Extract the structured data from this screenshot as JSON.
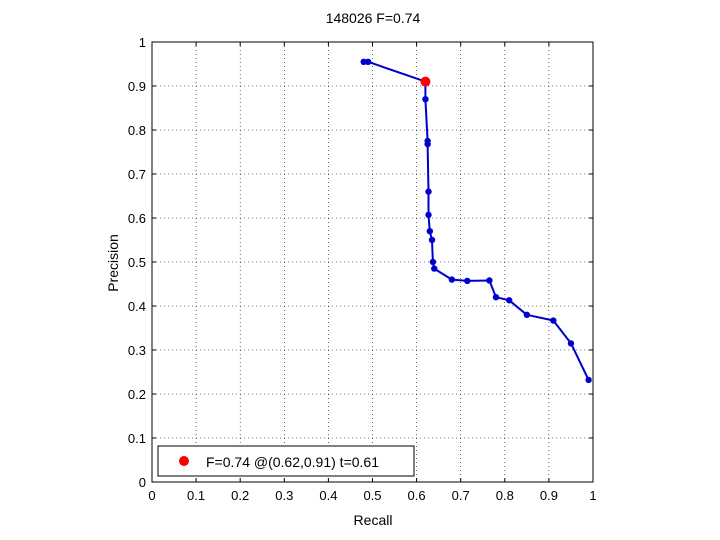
{
  "chart_data": {
    "type": "line",
    "title": "148026 F=0.74",
    "xlabel": "Recall",
    "ylabel": "Precision",
    "xlim": [
      0,
      1
    ],
    "ylim": [
      0,
      1
    ],
    "grid": true,
    "x_ticks": [
      "0",
      "0.1",
      "0.2",
      "0.3",
      "0.4",
      "0.5",
      "0.6",
      "0.7",
      "0.8",
      "0.9",
      "1"
    ],
    "y_ticks": [
      "0",
      "0.1",
      "0.2",
      "0.3",
      "0.4",
      "0.5",
      "0.6",
      "0.7",
      "0.8",
      "0.9",
      "1"
    ],
    "series": [
      {
        "color": "#0000cc",
        "x": [
          0.48,
          0.49,
          0.62,
          0.62,
          0.625,
          0.625,
          0.627,
          0.627,
          0.63,
          0.635,
          0.637,
          0.64,
          0.68,
          0.715,
          0.765,
          0.78,
          0.81,
          0.85,
          0.91,
          0.95,
          0.99
        ],
        "y": [
          0.955,
          0.955,
          0.91,
          0.87,
          0.775,
          0.768,
          0.66,
          0.607,
          0.57,
          0.55,
          0.5,
          0.485,
          0.46,
          0.457,
          0.458,
          0.42,
          0.413,
          0.38,
          0.367,
          0.315,
          0.232
        ]
      }
    ],
    "highlight": {
      "x": 0.62,
      "y": 0.91,
      "color": "#ff0000"
    },
    "legend": {
      "position": "bottom-left",
      "label": "F=0.74 @(0.62,0.91) t=0.61"
    }
  }
}
